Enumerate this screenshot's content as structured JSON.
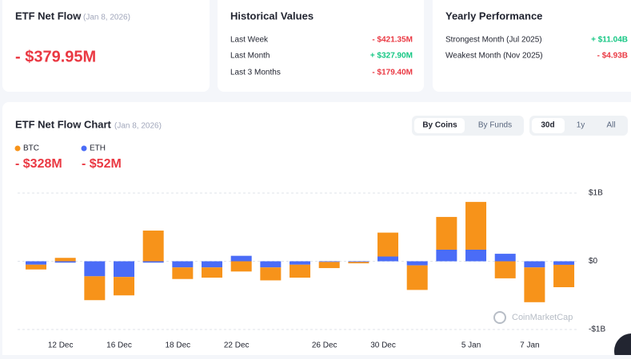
{
  "summary": {
    "title": "ETF Net Flow",
    "date": "(Jan 8, 2026)",
    "value": "- $379.95M"
  },
  "historical": {
    "title": "Historical Values",
    "rows": [
      [
        "Last Week",
        "- $421.35M"
      ],
      [
        "Last Month",
        "+ $327.90M"
      ],
      [
        "Last 3 Months",
        "- $179.40M"
      ]
    ]
  },
  "yearly": {
    "title": "Yearly Performance",
    "rows": [
      [
        "Strongest Month (Jul 2025)",
        "+ $11.04B"
      ],
      [
        "Weakest Month (Nov 2025)",
        "- $4.93B"
      ]
    ]
  },
  "tabs": {
    "view": [
      "By Coins",
      "By Funds"
    ],
    "range": [
      "30d",
      "1y",
      "All"
    ]
  },
  "chart_data": {
    "type": "bar",
    "stacked": true,
    "title": "ETF Net Flow Chart",
    "subtitle": "(Jan 8, 2026)",
    "totals": [
      "- $328M",
      "- $52M"
    ],
    "watermark": "CoinMarketCap",
    "categories": [
      null,
      "12 Dec",
      null,
      "16 Dec",
      null,
      "18 Dec",
      null,
      "22 Dec",
      null,
      null,
      "26 Dec",
      null,
      "30 Dec",
      null,
      null,
      "5 Jan",
      null,
      "7 Jan",
      null
    ],
    "series": [
      {
        "name": "BTC",
        "color": "#f7931a",
        "values": [
          -0.07,
          0.05,
          -0.35,
          -0.27,
          0.45,
          -0.17,
          -0.15,
          -0.15,
          -0.19,
          -0.19,
          -0.09,
          -0.02,
          0.35,
          -0.36,
          0.48,
          0.7,
          -0.25,
          -0.51,
          -0.328
        ]
      },
      {
        "name": "ETH",
        "color": "#4a6cf7",
        "values": [
          -0.05,
          -0.02,
          -0.22,
          -0.23,
          -0.02,
          -0.09,
          -0.09,
          0.08,
          -0.09,
          -0.05,
          -0.01,
          -0.01,
          0.07,
          -0.06,
          0.17,
          0.17,
          0.11,
          -0.09,
          -0.052
        ]
      }
    ],
    "ylim": [
      -1,
      1
    ],
    "yticks": [
      {
        "value": -1,
        "label": "-$1B"
      },
      {
        "value": 0,
        "label": "$0"
      },
      {
        "value": 1,
        "label": "$1B"
      }
    ],
    "grid": true
  }
}
